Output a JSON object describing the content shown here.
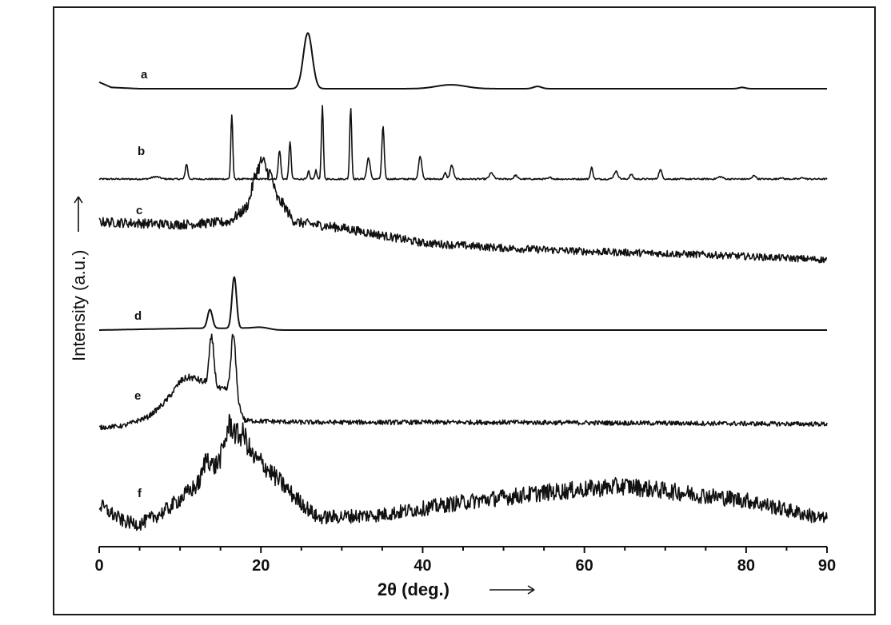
{
  "chart_data": {
    "type": "line",
    "xlabel": "2θ (deg.)",
    "ylabel": "Intensity (a.u.)",
    "xlim": [
      0,
      90
    ],
    "xticks": [
      "0",
      "20",
      "40",
      "60",
      "80",
      "90"
    ],
    "xtick_values": [
      0,
      20,
      40,
      60,
      80,
      90
    ],
    "grid": false,
    "offset_stacked": true,
    "series_color": "#111111",
    "series": [
      {
        "name": "a",
        "baseline": 0.0,
        "noise": 0.0,
        "peaks": [
          [
            25.8,
            0.85,
            0.55
          ],
          [
            43.5,
            0.06,
            1.8
          ],
          [
            54.2,
            0.035,
            0.5
          ],
          [
            79.5,
            0.02,
            0.4
          ]
        ],
        "background": [
          [
            0,
            0.1
          ],
          [
            1.5,
            0.02
          ],
          [
            5,
            0.0
          ],
          [
            90,
            0.0
          ]
        ]
      },
      {
        "name": "b",
        "baseline": 0.0,
        "noise": 0.02,
        "peaks": [
          [
            7.0,
            0.03,
            0.5
          ],
          [
            10.8,
            0.2,
            0.15
          ],
          [
            16.4,
            0.85,
            0.12
          ],
          [
            22.3,
            0.38,
            0.15
          ],
          [
            23.6,
            0.5,
            0.13
          ],
          [
            25.9,
            0.1,
            0.12
          ],
          [
            26.8,
            0.12,
            0.12
          ],
          [
            27.6,
            0.95,
            0.12
          ],
          [
            31.1,
            0.95,
            0.12
          ],
          [
            33.3,
            0.28,
            0.2
          ],
          [
            35.1,
            0.68,
            0.15
          ],
          [
            39.7,
            0.3,
            0.2
          ],
          [
            42.8,
            0.08,
            0.15
          ],
          [
            43.6,
            0.18,
            0.2
          ],
          [
            48.5,
            0.08,
            0.25
          ],
          [
            51.5,
            0.05,
            0.2
          ],
          [
            55.8,
            0.02,
            0.2
          ],
          [
            60.9,
            0.15,
            0.15
          ],
          [
            63.9,
            0.1,
            0.25
          ],
          [
            65.8,
            0.06,
            0.2
          ],
          [
            69.4,
            0.12,
            0.2
          ],
          [
            76.8,
            0.03,
            0.3
          ],
          [
            81.0,
            0.05,
            0.2
          ],
          [
            84.3,
            0.02,
            0.2
          ],
          [
            87.0,
            0.02,
            0.2
          ]
        ],
        "background": [
          [
            0,
            0.0
          ],
          [
            90,
            0.0
          ]
        ]
      },
      {
        "name": "c",
        "baseline": 0.0,
        "noise": 0.08,
        "peaks": [
          [
            19.4,
            0.3,
            0.5
          ],
          [
            20.3,
            0.35,
            0.4
          ],
          [
            21.2,
            0.3,
            0.4
          ],
          [
            22.5,
            0.12,
            0.8
          ]
        ],
        "background": [
          [
            0,
            0.45
          ],
          [
            10,
            0.42
          ],
          [
            16,
            0.45
          ],
          [
            20,
            0.75
          ],
          [
            24,
            0.45
          ],
          [
            30,
            0.38
          ],
          [
            40,
            0.2
          ],
          [
            50,
            0.14
          ],
          [
            60,
            0.1
          ],
          [
            75,
            0.06
          ],
          [
            90,
            0.0
          ]
        ]
      },
      {
        "name": "d",
        "baseline": 0.0,
        "noise": 0.0,
        "peaks": [
          [
            13.7,
            0.3,
            0.3
          ],
          [
            16.7,
            0.82,
            0.28
          ],
          [
            20.0,
            0.03,
            1.0
          ]
        ],
        "background": [
          [
            0,
            0.0
          ],
          [
            12,
            0.03
          ],
          [
            18,
            0.03
          ],
          [
            22,
            0.0
          ],
          [
            90,
            0.0
          ]
        ]
      },
      {
        "name": "e",
        "baseline": 0.0,
        "noise": 0.05,
        "peaks": [
          [
            13.9,
            0.55,
            0.3
          ],
          [
            16.6,
            0.65,
            0.3
          ],
          [
            11.0,
            0.15,
            1.5
          ]
        ],
        "background": [
          [
            0,
            0.0
          ],
          [
            3,
            0.02
          ],
          [
            6,
            0.12
          ],
          [
            10,
            0.4
          ],
          [
            13,
            0.45
          ],
          [
            16.5,
            0.42
          ],
          [
            18,
            0.08
          ],
          [
            25,
            0.06
          ],
          [
            50,
            0.06
          ],
          [
            70,
            0.05
          ],
          [
            90,
            0.04
          ]
        ]
      },
      {
        "name": "f",
        "baseline": 0.0,
        "noise": 0.13,
        "peaks": [
          [
            13.3,
            0.18,
            0.4
          ],
          [
            16.2,
            0.28,
            0.6
          ],
          [
            17.8,
            0.22,
            0.6
          ]
        ],
        "background": [
          [
            0,
            0.25
          ],
          [
            3,
            0.08
          ],
          [
            5,
            0.05
          ],
          [
            8,
            0.18
          ],
          [
            12,
            0.45
          ],
          [
            16,
            0.8
          ],
          [
            20,
            0.7
          ],
          [
            24,
            0.35
          ],
          [
            27,
            0.12
          ],
          [
            35,
            0.15
          ],
          [
            45,
            0.28
          ],
          [
            55,
            0.38
          ],
          [
            65,
            0.45
          ],
          [
            72,
            0.38
          ],
          [
            80,
            0.3
          ],
          [
            90,
            0.1
          ]
        ]
      }
    ]
  }
}
